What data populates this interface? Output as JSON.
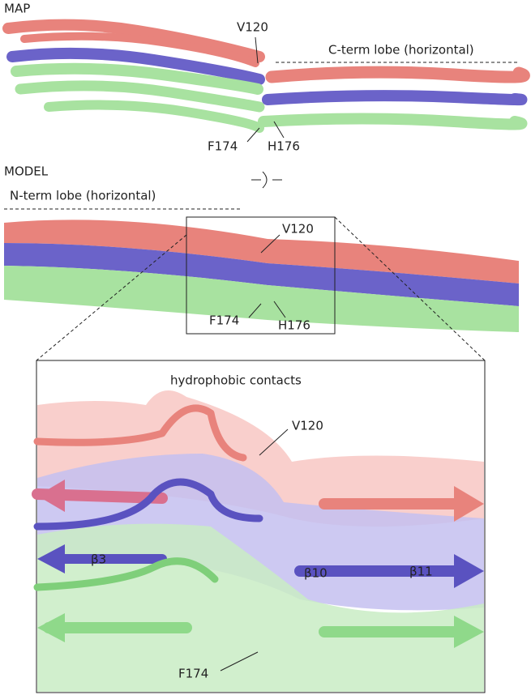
{
  "map_panel": {
    "label": "MAP",
    "v120": "V120",
    "lobe": "C-term lobe (horizontal)",
    "f174": "F174",
    "h176": "H176"
  },
  "model_panel": {
    "label": "MODEL",
    "lobe": "N-term lobe (horizontal)",
    "v120": "V120",
    "f174": "F174",
    "h176": "H176"
  },
  "zoom_panel": {
    "title": "hydrophobic contacts",
    "v120": "V120",
    "b3": "β3",
    "b10": "β10",
    "b11": "β11",
    "f174": "F174"
  }
}
